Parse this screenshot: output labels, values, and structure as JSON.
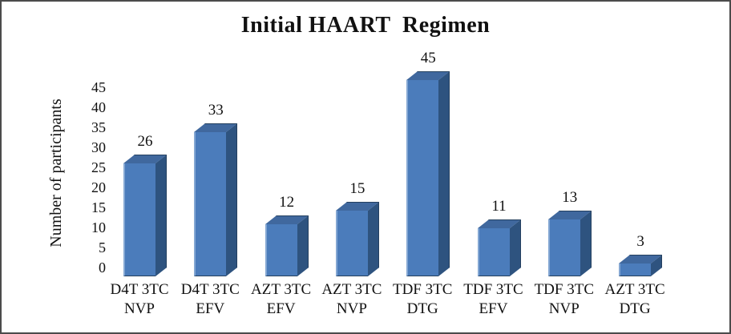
{
  "window": {
    "background": "#ffffff",
    "frame_border_color": "#4b4b4b"
  },
  "chart_data": {
    "type": "bar",
    "style": "3d-column",
    "title": "Initial HAART  Regimen",
    "xlabel": "",
    "ylabel": "Number of participants",
    "categories": [
      "D4T 3TC\nNVP",
      "D4T 3TC\nEFV",
      "AZT 3TC\nEFV",
      "AZT 3TC\nNVP",
      "TDF 3TC\nDTG",
      "TDF 3TC\nEFV",
      "TDF 3TC\nNVP",
      "AZT 3TC\nDTG"
    ],
    "values": [
      26,
      33,
      12,
      15,
      45,
      11,
      13,
      3
    ],
    "data_labels_shown": true,
    "ylim": [
      0,
      45
    ],
    "yticks": [
      0,
      5,
      10,
      15,
      20,
      25,
      30,
      35,
      40,
      45
    ],
    "grid": false,
    "legend": "none",
    "colors": {
      "bar_front": "#4b7cbb",
      "bar_front_highlight": "#84a7d3",
      "bar_top": "#40689e",
      "bar_side": "#2e537f",
      "bar_edge": "#24405f",
      "text": "#111111"
    }
  }
}
